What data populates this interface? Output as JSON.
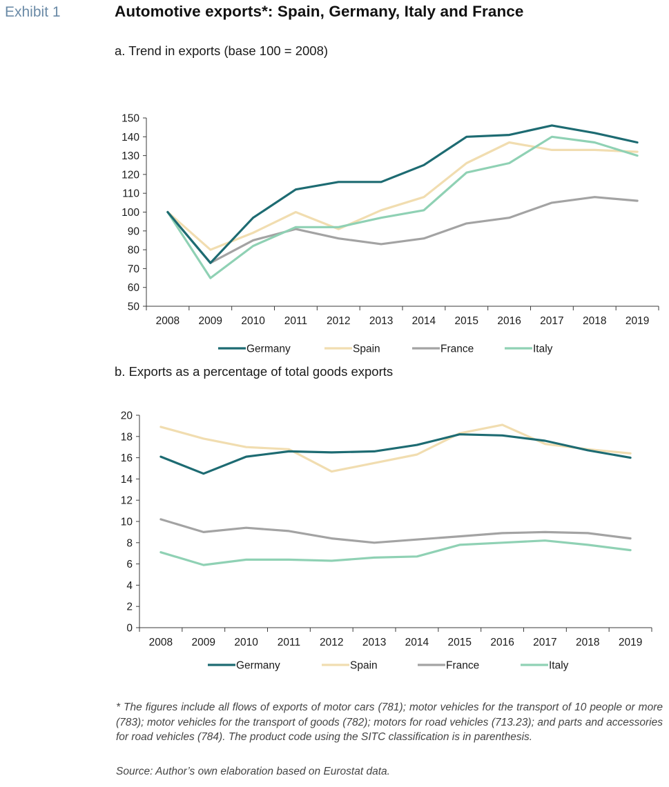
{
  "header": {
    "exhibit_label": "Exhibit 1",
    "title": "Automotive exports*: Spain, Germany, Italy and France"
  },
  "chart_data": [
    {
      "type": "line",
      "title": "a. Trend in exports (base 100 = 2008)",
      "x": [
        "2008",
        "2009",
        "2010",
        "2011",
        "2012",
        "2013",
        "2014",
        "2015",
        "2016",
        "2017",
        "2018",
        "2019"
      ],
      "ylim": [
        50,
        150
      ],
      "yticks": [
        50,
        60,
        70,
        80,
        90,
        100,
        110,
        120,
        130,
        140,
        150
      ],
      "grid": false,
      "legend_position": "bottom",
      "series": [
        {
          "name": "Germany",
          "color": "#1d6b72",
          "values": [
            100,
            73,
            97,
            112,
            116,
            116,
            125,
            140,
            141,
            146,
            142,
            137
          ]
        },
        {
          "name": "Spain",
          "color": "#f1ddb0",
          "values": [
            100,
            80,
            89,
            100,
            91,
            101,
            108,
            126,
            137,
            133,
            133,
            132
          ]
        },
        {
          "name": "France",
          "color": "#a3a3a3",
          "values": [
            100,
            73,
            85,
            91,
            86,
            83,
            86,
            94,
            97,
            105,
            108,
            106
          ]
        },
        {
          "name": "Italy",
          "color": "#8fd1b4",
          "values": [
            100,
            65,
            82,
            92,
            92,
            97,
            101,
            121,
            126,
            140,
            137,
            130
          ]
        }
      ]
    },
    {
      "type": "line",
      "title": "b. Exports as a percentage of total goods exports",
      "x": [
        "2008",
        "2009",
        "2010",
        "2011",
        "2012",
        "2013",
        "2014",
        "2015",
        "2016",
        "2017",
        "2018",
        "2019"
      ],
      "ylim": [
        0,
        20
      ],
      "yticks": [
        0,
        2,
        4,
        6,
        8,
        10,
        12,
        14,
        16,
        18,
        20
      ],
      "grid": false,
      "legend_position": "bottom",
      "series": [
        {
          "name": "Germany",
          "color": "#1d6b72",
          "values": [
            16.1,
            14.5,
            16.1,
            16.6,
            16.5,
            16.6,
            17.2,
            18.2,
            18.1,
            17.6,
            16.7,
            16.0
          ]
        },
        {
          "name": "Spain",
          "color": "#f1ddb0",
          "values": [
            18.9,
            17.8,
            17.0,
            16.8,
            14.7,
            15.5,
            16.3,
            18.3,
            19.1,
            17.3,
            16.8,
            16.4
          ]
        },
        {
          "name": "France",
          "color": "#a3a3a3",
          "values": [
            10.2,
            9.0,
            9.4,
            9.1,
            8.4,
            8.0,
            8.3,
            8.6,
            8.9,
            9.0,
            8.9,
            8.4
          ]
        },
        {
          "name": "Italy",
          "color": "#8fd1b4",
          "values": [
            7.1,
            5.9,
            6.4,
            6.4,
            6.3,
            6.6,
            6.7,
            7.8,
            8.0,
            8.2,
            7.8,
            7.3
          ]
        }
      ]
    }
  ],
  "notes": {
    "footnote": "* The figures include all flows of exports of motor cars (781); motor vehicles for the transport of 10 people or more (783); motor vehicles for the transport of goods (782); motors for road vehicles (713.23); and parts and accessories for road vehicles (784). The product code using the SITC classification is in parenthesis.",
    "source": "Source: Author’s own elaboration based on Eurostat data."
  }
}
